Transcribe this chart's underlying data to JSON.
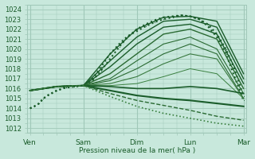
{
  "bg_color": "#c8e8dc",
  "grid_color": "#a0c8b8",
  "dark_line": "#1a5c2a",
  "mid_line": "#2a6a32",
  "light_line": "#3a8040",
  "ylabel_text": "Pression niveau de la mer( hPa )",
  "x_ticks": [
    0,
    1,
    2,
    3,
    4
  ],
  "x_labels": [
    "Ven",
    "Sam",
    "Dim",
    "Lun",
    "Mar"
  ],
  "ylim": [
    1011.5,
    1024.5
  ],
  "yticks": [
    1012,
    1013,
    1014,
    1015,
    1016,
    1017,
    1018,
    1019,
    1020,
    1021,
    1022,
    1023,
    1024
  ],
  "days": 4.0,
  "lines": [
    {
      "x": [
        0.0,
        0.08,
        0.17,
        0.25,
        0.33,
        0.5,
        0.67,
        0.83,
        1.0,
        1.17,
        1.33,
        1.5,
        1.67,
        1.83,
        2.0,
        2.17,
        2.33,
        2.5,
        2.67,
        2.83,
        3.0,
        3.17,
        3.33,
        3.5,
        3.67,
        3.83,
        4.0
      ],
      "y": [
        1014.0,
        1014.2,
        1014.5,
        1015.0,
        1015.3,
        1015.8,
        1016.1,
        1016.2,
        1016.3,
        1017.0,
        1018.2,
        1019.5,
        1020.5,
        1021.3,
        1021.8,
        1022.3,
        1022.7,
        1023.0,
        1023.2,
        1023.4,
        1023.3,
        1023.0,
        1022.5,
        1021.5,
        1020.0,
        1018.0,
        1015.2
      ],
      "style": "dotted",
      "lw": 1.5,
      "color": "#1a5c2a",
      "marker": "."
    },
    {
      "x": [
        0.0,
        0.08,
        0.17,
        0.25,
        0.33,
        0.5,
        0.67,
        0.83,
        1.0,
        1.17,
        1.33,
        1.5,
        1.67,
        1.83,
        2.0,
        2.17,
        2.33,
        2.5,
        2.67,
        2.83,
        3.0,
        3.17,
        3.33,
        3.5,
        3.67,
        3.83,
        4.0
      ],
      "y": [
        1014.0,
        1014.2,
        1014.5,
        1015.0,
        1015.3,
        1015.8,
        1016.1,
        1016.2,
        1016.3,
        1016.8,
        1017.8,
        1019.0,
        1020.2,
        1021.2,
        1022.0,
        1022.5,
        1022.9,
        1023.2,
        1023.3,
        1023.4,
        1023.3,
        1023.0,
        1022.3,
        1021.2,
        1019.5,
        1017.2,
        1014.8
      ],
      "style": "dotted",
      "lw": 1.5,
      "color": "#1a5c2a",
      "marker": "."
    },
    {
      "x": [
        0.0,
        0.5,
        1.0,
        1.5,
        2.0,
        2.5,
        3.0,
        3.5,
        4.0
      ],
      "y": [
        1015.8,
        1016.2,
        1016.3,
        1019.5,
        1022.0,
        1023.2,
        1023.3,
        1022.8,
        1017.5
      ],
      "style": "solid",
      "lw": 1.0,
      "color": "#1a5c2a",
      "marker": null
    },
    {
      "x": [
        0.0,
        0.5,
        1.0,
        1.5,
        2.0,
        2.5,
        3.0,
        3.5,
        4.0
      ],
      "y": [
        1015.8,
        1016.2,
        1016.3,
        1018.8,
        1021.2,
        1022.8,
        1023.0,
        1022.2,
        1017.0
      ],
      "style": "solid",
      "lw": 1.0,
      "color": "#1a5c2a",
      "marker": null
    },
    {
      "x": [
        0.0,
        0.5,
        1.0,
        1.5,
        2.0,
        2.5,
        3.0,
        3.5,
        4.0
      ],
      "y": [
        1015.8,
        1016.2,
        1016.3,
        1018.2,
        1020.5,
        1022.2,
        1022.5,
        1021.5,
        1016.5
      ],
      "style": "solid",
      "lw": 1.0,
      "color": "#1a5c2a",
      "marker": null
    },
    {
      "x": [
        0.0,
        0.5,
        1.0,
        1.5,
        2.0,
        2.5,
        3.0,
        3.5,
        4.0
      ],
      "y": [
        1015.8,
        1016.2,
        1016.3,
        1017.5,
        1019.5,
        1021.5,
        1022.0,
        1021.0,
        1016.0
      ],
      "style": "solid",
      "lw": 1.0,
      "color": "#2a6a32",
      "marker": null
    },
    {
      "x": [
        0.0,
        0.5,
        1.0,
        1.5,
        2.0,
        2.5,
        3.0,
        3.5,
        4.0
      ],
      "y": [
        1015.8,
        1016.2,
        1016.3,
        1017.0,
        1018.8,
        1020.5,
        1021.2,
        1020.0,
        1015.5
      ],
      "style": "solid",
      "lw": 0.8,
      "color": "#2a6a32",
      "marker": null
    },
    {
      "x": [
        0.0,
        0.5,
        1.0,
        1.5,
        2.0,
        2.5,
        3.0,
        3.5,
        4.0
      ],
      "y": [
        1015.8,
        1016.2,
        1016.3,
        1016.8,
        1018.0,
        1019.5,
        1020.5,
        1019.5,
        1015.0
      ],
      "style": "solid",
      "lw": 0.8,
      "color": "#2a6a32",
      "marker": null
    },
    {
      "x": [
        0.0,
        0.5,
        1.0,
        1.5,
        2.0,
        2.5,
        3.0,
        3.5,
        4.0
      ],
      "y": [
        1015.8,
        1016.2,
        1016.3,
        1016.5,
        1017.2,
        1018.5,
        1019.5,
        1019.0,
        1015.0
      ],
      "style": "solid",
      "lw": 0.8,
      "color": "#3a7a40",
      "marker": null
    },
    {
      "x": [
        0.0,
        0.5,
        1.0,
        1.5,
        2.0,
        2.5,
        3.0,
        3.5,
        4.0
      ],
      "y": [
        1015.8,
        1016.2,
        1016.3,
        1016.3,
        1016.5,
        1017.2,
        1018.0,
        1017.5,
        1015.0
      ],
      "style": "solid",
      "lw": 0.7,
      "color": "#3a8040",
      "marker": null
    },
    {
      "x": [
        0.0,
        0.5,
        1.0,
        1.5,
        2.0,
        2.5,
        3.0,
        3.5,
        4.0
      ],
      "y": [
        1015.8,
        1016.2,
        1016.3,
        1016.2,
        1016.0,
        1016.0,
        1016.2,
        1016.0,
        1015.5
      ],
      "style": "solid",
      "lw": 1.2,
      "color": "#1a5c2a",
      "marker": null
    },
    {
      "x": [
        0.0,
        0.5,
        1.0,
        1.5,
        2.0,
        2.5,
        3.0,
        3.5,
        4.0
      ],
      "y": [
        1015.8,
        1016.2,
        1016.3,
        1015.8,
        1015.3,
        1015.0,
        1014.8,
        1014.5,
        1014.2
      ],
      "style": "solid",
      "lw": 1.5,
      "color": "#1a5c2a",
      "marker": null
    },
    {
      "x": [
        0.0,
        0.5,
        1.0,
        1.5,
        2.0,
        2.5,
        3.0,
        3.5,
        4.0
      ],
      "y": [
        1015.8,
        1016.2,
        1016.3,
        1015.5,
        1014.8,
        1014.3,
        1013.8,
        1013.2,
        1012.8
      ],
      "style": "dashed",
      "lw": 1.0,
      "color": "#2a6a32",
      "marker": null
    },
    {
      "x": [
        0.0,
        0.5,
        1.0,
        1.5,
        2.0,
        2.5,
        3.0,
        3.5,
        4.0
      ],
      "y": [
        1015.8,
        1016.2,
        1016.3,
        1015.2,
        1014.2,
        1013.5,
        1013.0,
        1012.5,
        1012.2
      ],
      "style": "dotted",
      "lw": 1.2,
      "color": "#3a8040",
      "marker": null
    }
  ]
}
